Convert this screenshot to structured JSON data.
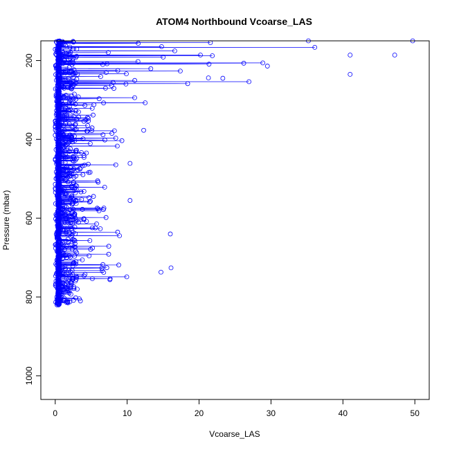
{
  "chart_data": {
    "type": "line",
    "title": "ATOM4 Northbound Vcoarse_LAS",
    "xlabel": "Vcoarse_LAS",
    "ylabel": "Pressure (mbar)",
    "xlim": [
      -2,
      52
    ],
    "ylim": [
      1060,
      150
    ],
    "y_reversed": true,
    "x_ticks": [
      0,
      10,
      20,
      30,
      40,
      50
    ],
    "y_ticks": [
      200,
      400,
      600,
      800,
      1000
    ],
    "grid": false,
    "legend": "none",
    "series_color": "#0000ff",
    "marker": "open-circle",
    "profile_envelope": [
      {
        "p": 150,
        "xmax": 50
      },
      {
        "p": 180,
        "xmax": 47
      },
      {
        "p": 190,
        "xmax": 41
      },
      {
        "p": 210,
        "xmax": 30
      },
      {
        "p": 240,
        "xmax": 41
      },
      {
        "p": 260,
        "xmax": 21
      },
      {
        "p": 300,
        "xmax": 15
      },
      {
        "p": 330,
        "xmax": 11
      },
      {
        "p": 380,
        "xmax": 12
      },
      {
        "p": 420,
        "xmax": 9
      },
      {
        "p": 460,
        "xmax": 10
      },
      {
        "p": 500,
        "xmax": 6
      },
      {
        "p": 550,
        "xmax": 10
      },
      {
        "p": 600,
        "xmax": 8
      },
      {
        "p": 640,
        "xmax": 16
      },
      {
        "p": 670,
        "xmax": 11
      },
      {
        "p": 700,
        "xmax": 13
      },
      {
        "p": 730,
        "xmax": 16
      },
      {
        "p": 760,
        "xmax": 8
      },
      {
        "p": 790,
        "xmax": 2
      },
      {
        "p": 810,
        "xmax": 4
      },
      {
        "p": 822,
        "xmax": 0.3
      }
    ],
    "notable_points": [
      {
        "x": 49.7,
        "y": 150
      },
      {
        "x": 47.2,
        "y": 186
      },
      {
        "x": 41.0,
        "y": 186
      },
      {
        "x": 41.0,
        "y": 235
      },
      {
        "x": 29.5,
        "y": 214
      },
      {
        "x": 35.2,
        "y": 150
      },
      {
        "x": 21.3,
        "y": 244
      },
      {
        "x": 23.3,
        "y": 245
      },
      {
        "x": 16.1,
        "y": 726
      },
      {
        "x": 16.0,
        "y": 640
      },
      {
        "x": 14.7,
        "y": 737
      },
      {
        "x": 12.3,
        "y": 377
      },
      {
        "x": 10.4,
        "y": 555
      },
      {
        "x": 10.4,
        "y": 461
      },
      {
        "x": 7.6,
        "y": 756
      },
      {
        "x": 3.5,
        "y": 810
      }
    ]
  }
}
